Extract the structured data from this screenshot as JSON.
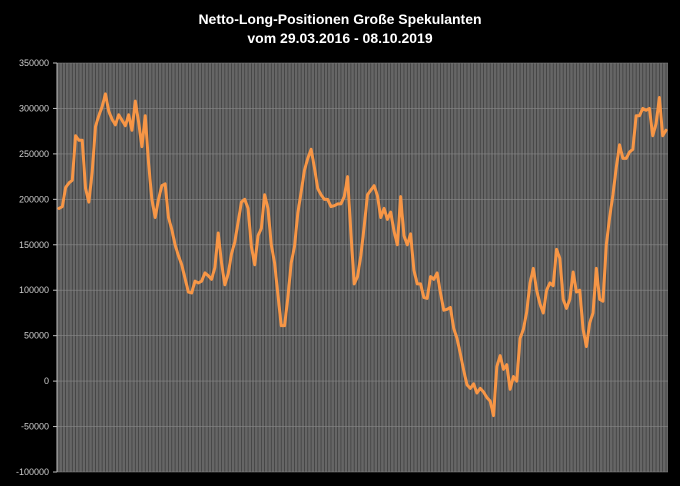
{
  "chart_data": {
    "type": "line",
    "title": "Netto-Long-Positionen  Große Spekulanten",
    "subtitle": "vom 29.03.2016 - 08.10.2019",
    "xlabel": "",
    "ylabel": "",
    "ylim": [
      -100000,
      350000
    ],
    "yticks": [
      350000,
      300000,
      250000,
      200000,
      150000,
      100000,
      50000,
      0,
      -50000,
      -100000
    ],
    "grid": true,
    "colors": {
      "background": "#000000",
      "plot_area": "#666666",
      "gridline": "#3a3a3a",
      "series": "#f79646",
      "text": "#ffffff"
    },
    "series": [
      {
        "values": [
          190000,
          192000,
          213000,
          218000,
          221000,
          270000,
          265000,
          265000,
          212000,
          197000,
          230000,
          280000,
          292000,
          302000,
          316000,
          297000,
          288000,
          282000,
          293000,
          287000,
          281000,
          293000,
          276000,
          308000,
          285000,
          258000,
          292000,
          240000,
          200000,
          180000,
          200000,
          215000,
          217000,
          180000,
          167000,
          150000,
          138000,
          128000,
          113000,
          98000,
          97000,
          110000,
          108000,
          110000,
          119000,
          116000,
          112000,
          125000,
          163000,
          130000,
          106000,
          118000,
          140000,
          153000,
          175000,
          197000,
          200000,
          190000,
          148000,
          128000,
          160000,
          168000,
          205000,
          190000,
          150000,
          130000,
          95000,
          61000,
          61000,
          92000,
          130000,
          148000,
          185000,
          208000,
          232000,
          245000,
          255000,
          235000,
          212000,
          205000,
          200000,
          200000,
          192000,
          193000,
          195000,
          195000,
          203000,
          225000,
          163000,
          107000,
          115000,
          138000,
          170000,
          205000,
          210000,
          215000,
          204000,
          180000,
          190000,
          178000,
          186000,
          165000,
          150000,
          203000,
          160000,
          150000,
          162000,
          122000,
          107000,
          107000,
          92000,
          91000,
          115000,
          112000,
          119000,
          97000,
          78000,
          79000,
          81000,
          58000,
          47000,
          30000,
          12000,
          -4000,
          -8000,
          -3000,
          -13000,
          -8000,
          -12000,
          -18000,
          -22000,
          -38000,
          16000,
          28000,
          13000,
          18000,
          -9000,
          5000,
          0,
          47000,
          57000,
          76000,
          108000,
          124000,
          100000,
          85000,
          75000,
          100000,
          108000,
          105000,
          145000,
          135000,
          90000,
          80000,
          90000,
          120000,
          98000,
          100000,
          57000,
          38000,
          64000,
          75000,
          124000,
          90000,
          88000,
          150000,
          180000,
          205000,
          235000,
          260000,
          245000,
          245000,
          252000,
          255000,
          292000,
          292000,
          300000,
          298000,
          300000,
          270000,
          283000,
          312000,
          270000,
          276000
        ]
      }
    ]
  }
}
